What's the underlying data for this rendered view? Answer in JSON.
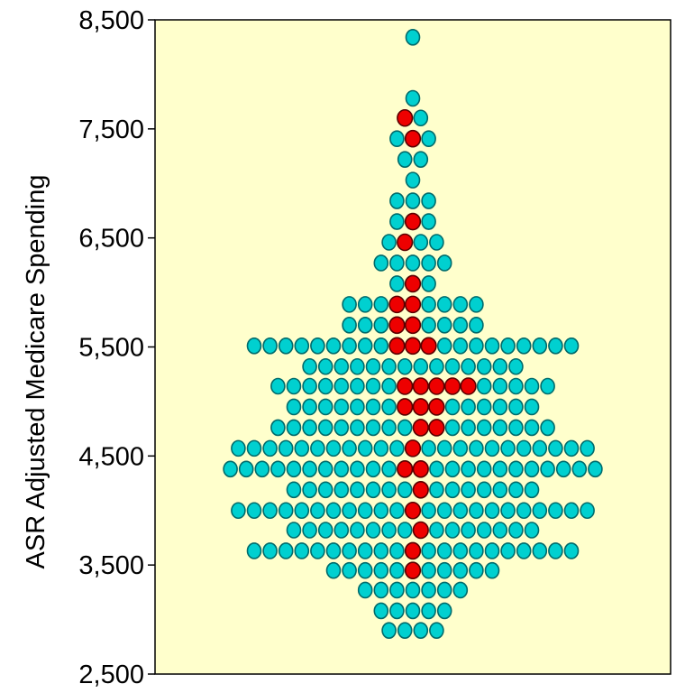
{
  "chart_data": {
    "type": "scatter",
    "subtype": "dot-density beeswarm",
    "title": "",
    "xlabel": "",
    "ylabel": "ASR Adjusted Medicare Spending",
    "ylim": [
      2500,
      8500
    ],
    "yticks": [
      {
        "value": 2500,
        "label": "2,500"
      },
      {
        "value": 3500,
        "label": "3,500"
      },
      {
        "value": 4500,
        "label": "4,500"
      },
      {
        "value": 5500,
        "label": "5,500"
      },
      {
        "value": 6500,
        "label": "6,500"
      },
      {
        "value": 7500,
        "label": "7,500"
      },
      {
        "value": 8500,
        "label": "8,500"
      }
    ],
    "grid": false,
    "plot_background": "#ffffcc",
    "colors": {
      "default_dot": "#00d0d0",
      "default_dot_edge": "#006b6b",
      "highlight_dot": "#ee0000",
      "highlight_dot_edge": "#5a0000"
    },
    "bins": [
      {
        "y": 8340,
        "count": 1,
        "highlighted": []
      },
      {
        "y": 7780,
        "count": 1,
        "highlighted": []
      },
      {
        "y": 7600,
        "count": 2,
        "highlighted": [
          0
        ]
      },
      {
        "y": 7410,
        "count": 3,
        "highlighted": [
          1
        ]
      },
      {
        "y": 7220,
        "count": 2,
        "highlighted": []
      },
      {
        "y": 7030,
        "count": 1,
        "highlighted": []
      },
      {
        "y": 6840,
        "count": 3,
        "highlighted": []
      },
      {
        "y": 6650,
        "count": 3,
        "highlighted": [
          1
        ]
      },
      {
        "y": 6460,
        "count": 4,
        "highlighted": [
          1
        ]
      },
      {
        "y": 6270,
        "count": 5,
        "highlighted": []
      },
      {
        "y": 6080,
        "count": 3,
        "highlighted": [
          1
        ]
      },
      {
        "y": 5890,
        "count": 9,
        "highlighted": [
          3,
          4
        ]
      },
      {
        "y": 5700,
        "count": 9,
        "highlighted": [
          3,
          4
        ]
      },
      {
        "y": 5510,
        "count": 21,
        "highlighted": [
          9,
          10,
          11
        ]
      },
      {
        "y": 5320,
        "count": 14,
        "highlighted": []
      },
      {
        "y": 5140,
        "count": 18,
        "highlighted": [
          8,
          9,
          10,
          11,
          12
        ]
      },
      {
        "y": 4950,
        "count": 16,
        "highlighted": [
          7,
          8,
          9
        ]
      },
      {
        "y": 4760,
        "count": 18,
        "highlighted": [
          9,
          10
        ]
      },
      {
        "y": 4570,
        "count": 23,
        "highlighted": [
          11
        ]
      },
      {
        "y": 4380,
        "count": 24,
        "highlighted": [
          11,
          12
        ]
      },
      {
        "y": 4190,
        "count": 16,
        "highlighted": [
          8
        ]
      },
      {
        "y": 4000,
        "count": 23,
        "highlighted": [
          11
        ]
      },
      {
        "y": 3820,
        "count": 16,
        "highlighted": [
          8
        ]
      },
      {
        "y": 3630,
        "count": 21,
        "highlighted": [
          10
        ]
      },
      {
        "y": 3450,
        "count": 11,
        "highlighted": [
          5
        ]
      },
      {
        "y": 3270,
        "count": 7,
        "highlighted": []
      },
      {
        "y": 3080,
        "count": 5,
        "highlighted": []
      },
      {
        "y": 2900,
        "count": 4,
        "highlighted": []
      }
    ]
  }
}
